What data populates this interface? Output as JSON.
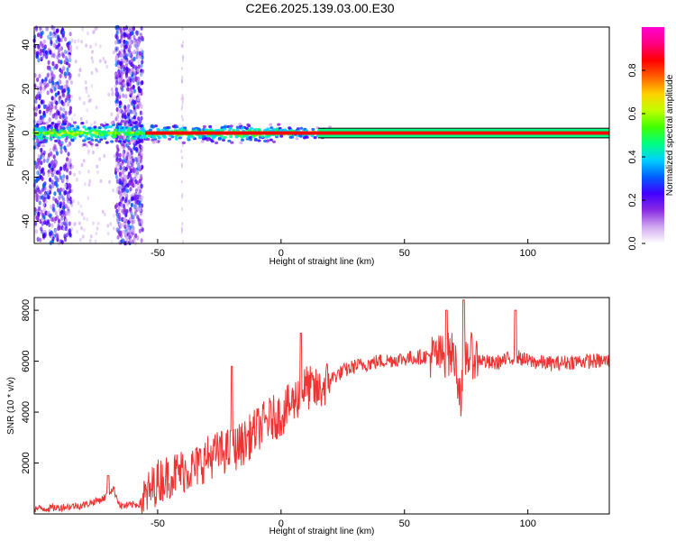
{
  "title": "C2E6.2025.139.03.00.E30",
  "chart_data": [
    {
      "type": "heatmap",
      "xlabel": "Height of straight line (km)",
      "ylabel": "Frequency (Hz)",
      "xlim": [
        -100,
        133
      ],
      "ylim": [
        -50,
        48
      ],
      "xticks": [
        -50,
        0,
        50,
        100
      ],
      "yticks": [
        -40,
        -20,
        0,
        20,
        40
      ],
      "colorbar": {
        "label": "Normalized spectral amplitude",
        "range": [
          0,
          1
        ],
        "ticks": [
          "0.0",
          "0.2",
          "0.4",
          "0.6",
          "0.8"
        ],
        "colors": [
          "#ffffff",
          "#d0a8f0",
          "#8a2be2",
          "#4000ff",
          "#0060ff",
          "#00d0ff",
          "#00ff80",
          "#40ff00",
          "#c0ff00",
          "#ffd000",
          "#ff6000",
          "#ff0000",
          "#ff0080",
          "#ff00d0"
        ]
      },
      "features": {
        "clutter_bands_km": [
          [
            -100,
            -85
          ],
          [
            -67,
            -56
          ]
        ],
        "signal_center_freq_hz": 0,
        "signal_halfwidth_hz": 2
      }
    },
    {
      "type": "line",
      "xlabel": "Height of straight line (km)",
      "ylabel": "SNR (10 * v/v)",
      "xlim": [
        -100,
        133
      ],
      "ylim": [
        0,
        8500
      ],
      "xticks": [
        -50,
        0,
        50,
        100
      ],
      "yticks": [
        2000,
        4000,
        6000,
        8000
      ],
      "color": "#ee3333",
      "x": [
        -100,
        -90,
        -80,
        -72,
        -68,
        -65,
        -57,
        -50,
        -45,
        -40,
        -35,
        -30,
        -25,
        -20,
        -15,
        -10,
        -5,
        0,
        5,
        10,
        15,
        20,
        25,
        30,
        40,
        50,
        60,
        65,
        70,
        73,
        75,
        80,
        85,
        90,
        95,
        100,
        110,
        120,
        133
      ],
      "y": [
        200,
        250,
        350,
        600,
        1000,
        300,
        400,
        1300,
        1500,
        1700,
        1800,
        2200,
        2400,
        2500,
        2800,
        3300,
        3700,
        3900,
        4400,
        5000,
        4800,
        5300,
        5600,
        5800,
        6000,
        6100,
        6200,
        6200,
        6300,
        4600,
        6300,
        6100,
        5900,
        6000,
        6200,
        6000,
        5900,
        6000,
        6000
      ],
      "spikes": [
        {
          "x": -70,
          "y": 1500
        },
        {
          "x": -20,
          "y": 5800
        },
        {
          "x": 8,
          "y": 7100
        },
        {
          "x": 67,
          "y": 8000
        },
        {
          "x": 74,
          "y": 8400
        },
        {
          "x": 95,
          "y": 8000
        }
      ]
    }
  ]
}
